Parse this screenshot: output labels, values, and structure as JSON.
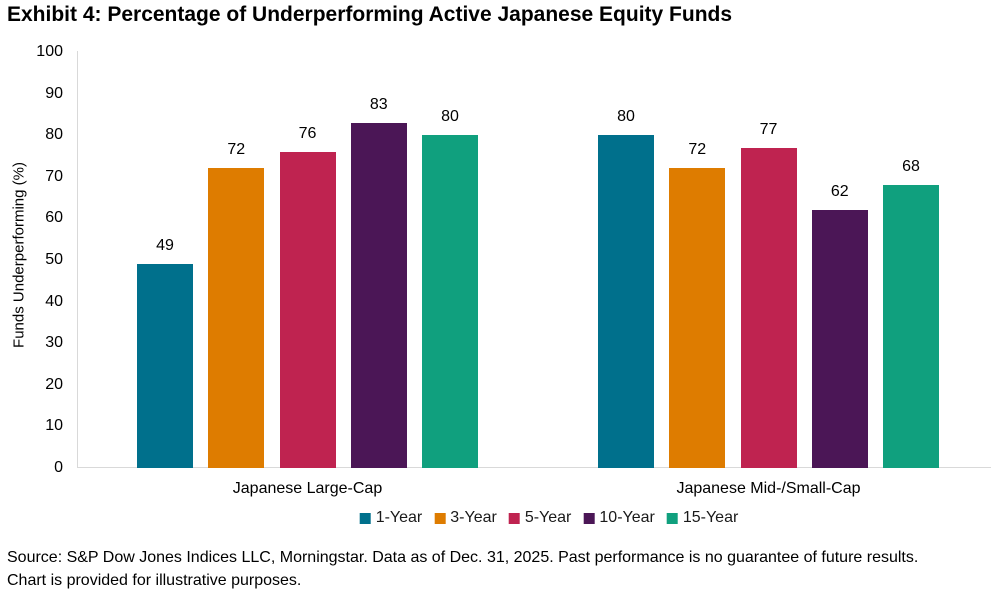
{
  "title": "Exhibit 4: Percentage of Underperforming Active Japanese Equity Funds",
  "chart_data": {
    "type": "bar",
    "title": "Exhibit 4: Percentage of Underperforming Active Japanese Equity Funds",
    "xlabel": "",
    "ylabel": "Funds Underperforming (%)",
    "ylim": [
      0,
      100
    ],
    "ytick_interval": 10,
    "yticks": [
      0,
      10,
      20,
      30,
      40,
      50,
      60,
      70,
      80,
      90,
      100
    ],
    "grid": false,
    "legend_position": "bottom",
    "data_labels": true,
    "categories": [
      "Japanese Large-Cap",
      "Japanese Mid-/Small-Cap"
    ],
    "series": [
      {
        "name": "1-Year",
        "color": "#00708C",
        "values": [
          49,
          80
        ]
      },
      {
        "name": "3-Year",
        "color": "#DE7C00",
        "values": [
          72,
          72
        ]
      },
      {
        "name": "5-Year",
        "color": "#BF2350",
        "values": [
          76,
          77
        ]
      },
      {
        "name": "10-Year",
        "color": "#4B1656",
        "values": [
          83,
          62
        ]
      },
      {
        "name": "15-Year",
        "color": "#10A07E",
        "values": [
          80,
          68
        ]
      }
    ]
  },
  "source_text": "Source: S&P Dow Jones Indices LLC, Morningstar. Data as of Dec. 31, 2025. Past performance is no guarantee of future results. Chart is provided for illustrative purposes.",
  "colors": {
    "axis_line": "#D9D9D9",
    "label_text": "#000000"
  }
}
